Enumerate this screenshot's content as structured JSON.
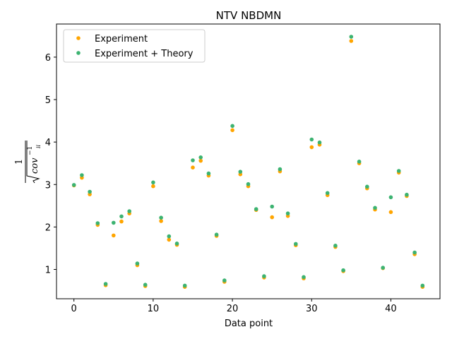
{
  "chart_data": {
    "type": "scatter",
    "title": "NTV NBDMN",
    "xlabel": "Data point",
    "ylabel": {
      "numerator": "1",
      "radicand": "cov",
      "superscript": "−1",
      "subscript": "ii"
    },
    "xlim": [
      -2.2,
      46.2
    ],
    "ylim": [
      0.31,
      6.78
    ],
    "xticks": [
      0,
      10,
      20,
      30,
      40
    ],
    "yticks": [
      1,
      2,
      3,
      4,
      5,
      6
    ],
    "grid": false,
    "legend_position": "top-left",
    "colors": {
      "experiment": "#ffa500",
      "theory": "#3cb371"
    },
    "series": [
      {
        "name": "Experiment",
        "color": "#ffa500",
        "x": [
          0,
          1,
          2,
          3,
          4,
          5,
          6,
          7,
          8,
          9,
          10,
          11,
          12,
          13,
          14,
          15,
          16,
          17,
          18,
          19,
          20,
          21,
          22,
          23,
          24,
          25,
          26,
          27,
          28,
          29,
          30,
          31,
          32,
          33,
          34,
          35,
          36,
          37,
          38,
          39,
          40,
          41,
          42,
          43,
          44
        ],
        "values": [
          2.98,
          3.16,
          2.77,
          2.05,
          0.63,
          1.8,
          2.13,
          2.32,
          1.1,
          0.61,
          2.96,
          2.14,
          1.7,
          1.58,
          0.59,
          3.4,
          3.56,
          3.21,
          1.79,
          0.71,
          4.28,
          3.24,
          2.96,
          2.4,
          0.81,
          2.23,
          3.31,
          2.26,
          1.57,
          0.79,
          3.88,
          3.94,
          2.75,
          1.53,
          0.96,
          6.38,
          3.5,
          2.91,
          2.41,
          1.03,
          2.35,
          3.28,
          2.73,
          1.36,
          0.59
        ]
      },
      {
        "name": "Experiment + Theory",
        "color": "#3cb371",
        "x": [
          0,
          1,
          2,
          3,
          4,
          5,
          6,
          7,
          8,
          9,
          10,
          11,
          12,
          13,
          14,
          15,
          16,
          17,
          18,
          19,
          20,
          21,
          22,
          23,
          24,
          25,
          26,
          27,
          28,
          29,
          30,
          31,
          32,
          33,
          34,
          35,
          36,
          37,
          38,
          39,
          40,
          41,
          42,
          43,
          44
        ],
        "values": [
          2.99,
          3.22,
          2.83,
          2.09,
          0.66,
          2.1,
          2.25,
          2.37,
          1.14,
          0.64,
          3.05,
          2.22,
          1.78,
          1.61,
          0.62,
          3.57,
          3.64,
          3.26,
          1.82,
          0.74,
          4.38,
          3.3,
          3.01,
          2.42,
          0.84,
          2.48,
          3.36,
          2.32,
          1.6,
          0.82,
          4.06,
          3.99,
          2.8,
          1.56,
          0.98,
          6.48,
          3.54,
          2.95,
          2.45,
          1.04,
          2.7,
          3.32,
          2.76,
          1.4,
          0.62
        ]
      }
    ]
  }
}
